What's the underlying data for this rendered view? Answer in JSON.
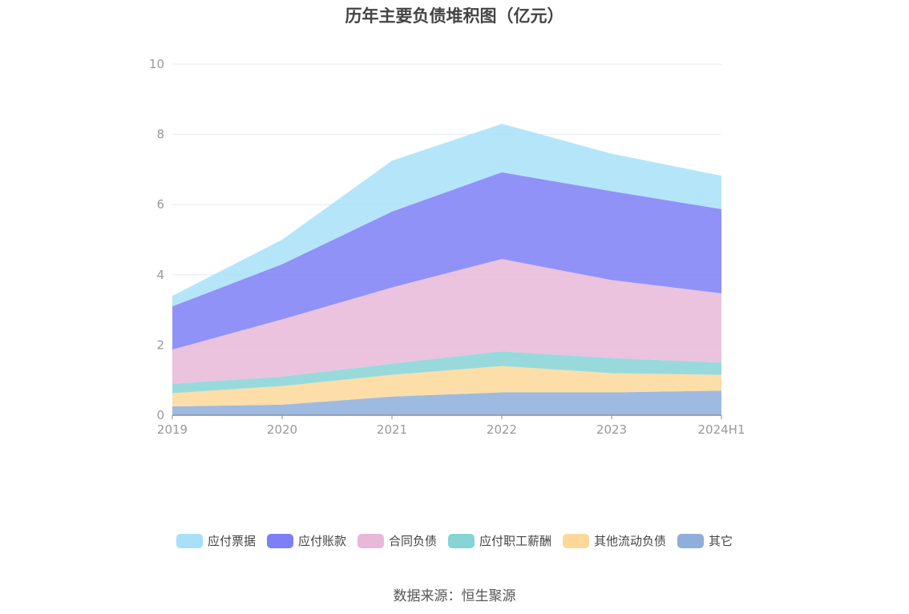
{
  "chart_data": {
    "type": "area",
    "stacked": true,
    "title": "历年主要负债堆积图（亿元）",
    "source": "数据来源：恒生聚源",
    "categories": [
      "2019",
      "2020",
      "2021",
      "2022",
      "2023",
      "2024H1"
    ],
    "ylim": [
      0,
      10
    ],
    "yticks": [
      "0",
      "2",
      "4",
      "6",
      "8",
      "10"
    ],
    "grid": true,
    "legend_position": "bottom",
    "series": [
      {
        "name": "其它",
        "color": "#8eaedc",
        "values": [
          0.25,
          0.3,
          0.53,
          0.65,
          0.65,
          0.7
        ]
      },
      {
        "name": "其他流动负债",
        "color": "#fdd89a",
        "values": [
          0.38,
          0.53,
          0.62,
          0.75,
          0.55,
          0.45
        ]
      },
      {
        "name": "应付职工薪酬",
        "color": "#86d4d6",
        "values": [
          0.27,
          0.27,
          0.32,
          0.42,
          0.43,
          0.35
        ]
      },
      {
        "name": "合同负债",
        "color": "#e8b8d8",
        "values": [
          0.97,
          1.63,
          2.17,
          2.63,
          2.22,
          1.97
        ]
      },
      {
        "name": "应付账款",
        "color": "#7d7ff6",
        "values": [
          1.23,
          1.57,
          2.16,
          2.47,
          2.53,
          2.4
        ]
      },
      {
        "name": "应付票据",
        "color": "#a8e0f8",
        "values": [
          0.3,
          0.7,
          1.45,
          1.38,
          1.07,
          0.95
        ]
      }
    ],
    "legend_order": [
      "应付票据",
      "应付账款",
      "合同负债",
      "应付职工薪酬",
      "其他流动负债",
      "其它"
    ]
  }
}
